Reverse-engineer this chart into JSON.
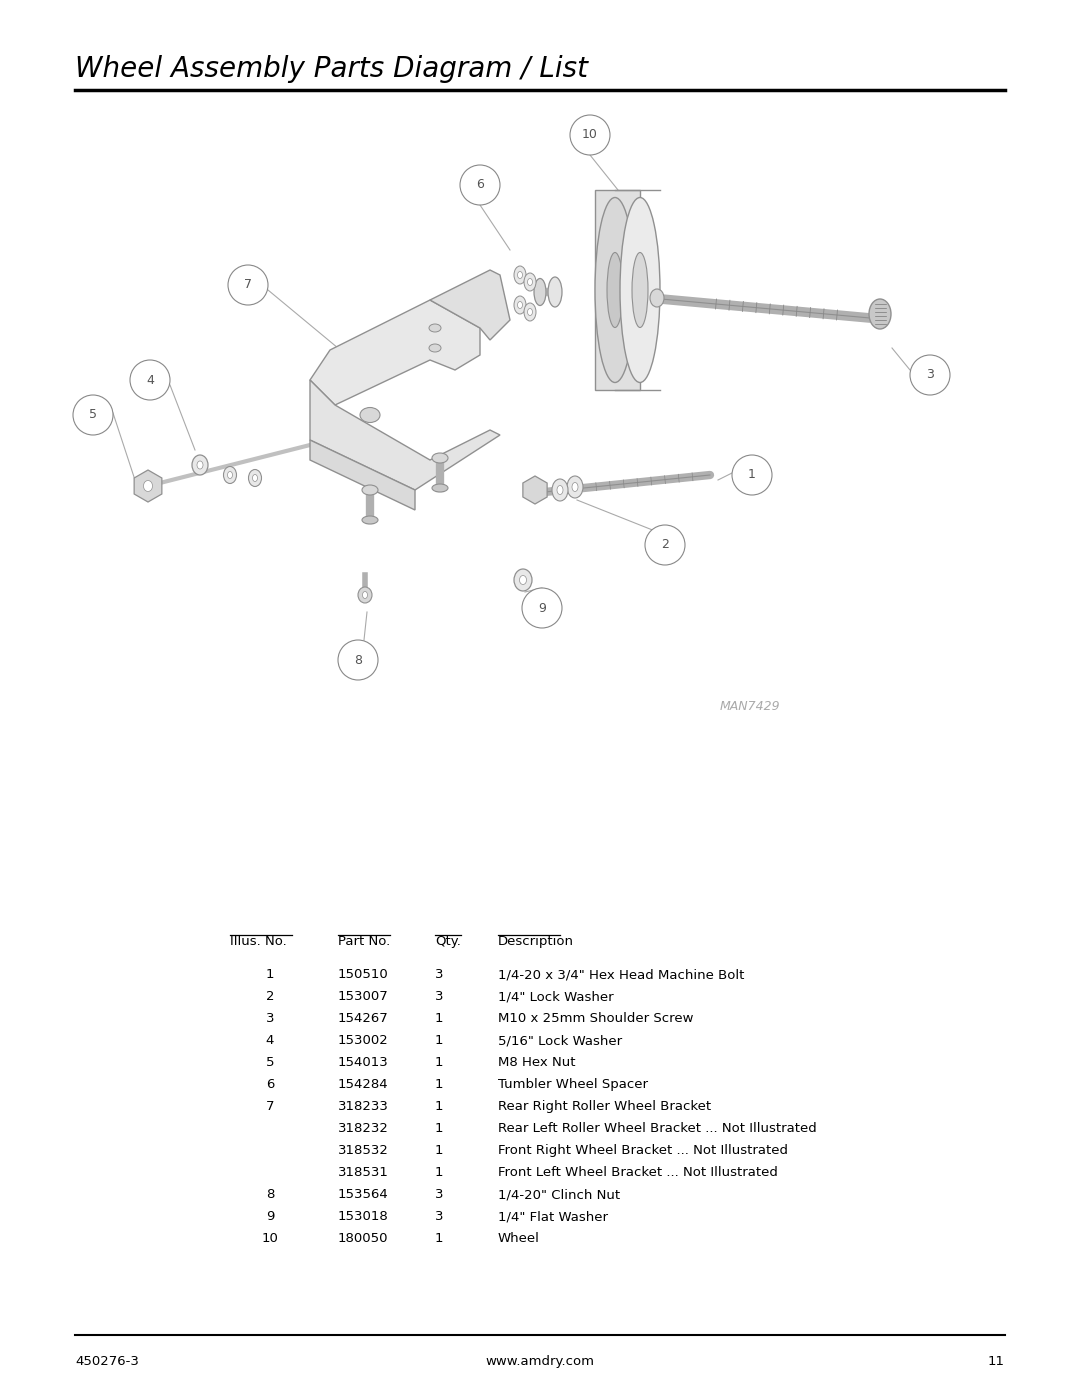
{
  "title": "Wheel Assembly Parts Diagram / List",
  "title_fontsize": 20,
  "bg_color": "#ffffff",
  "page_number": "11",
  "footer_left": "450276-3",
  "footer_center": "www.amdry.com",
  "diagram_label": "MAN7429",
  "table_headers": [
    "Illus. No.",
    "Part No.",
    "Qty.",
    "Description"
  ],
  "table_rows": [
    [
      "1",
      "150510",
      "3",
      "1/4-20 x 3/4\" Hex Head Machine Bolt"
    ],
    [
      "2",
      "153007",
      "3",
      "1/4\" Lock Washer"
    ],
    [
      "3",
      "154267",
      "1",
      "M10 x 25mm Shoulder Screw"
    ],
    [
      "4",
      "153002",
      "1",
      "5/16\" Lock Washer"
    ],
    [
      "5",
      "154013",
      "1",
      "M8 Hex Nut"
    ],
    [
      "6",
      "154284",
      "1",
      "Tumbler Wheel Spacer"
    ],
    [
      "7",
      "318233",
      "1",
      "Rear Right Roller Wheel Bracket"
    ],
    [
      "",
      "318232",
      "1",
      "Rear Left Roller Wheel Bracket ... Not Illustrated"
    ],
    [
      "",
      "318532",
      "1",
      "Front Right Wheel Bracket ... Not Illustrated"
    ],
    [
      "",
      "318531",
      "1",
      "Front Left Wheel Bracket ... Not Illustrated"
    ],
    [
      "8",
      "153564",
      "3",
      "1/4-20\" Clinch Nut"
    ],
    [
      "9",
      "153018",
      "3",
      "1/4\" Flat Washer"
    ],
    [
      "10",
      "180050",
      "1",
      "Wheel"
    ]
  ],
  "lc": "#aaaaaa",
  "part_ec": "#909090",
  "part_fc_light": "#e8e8e8",
  "part_fc_mid": "#d8d8d8",
  "part_fc_dark": "#c8c8c8"
}
